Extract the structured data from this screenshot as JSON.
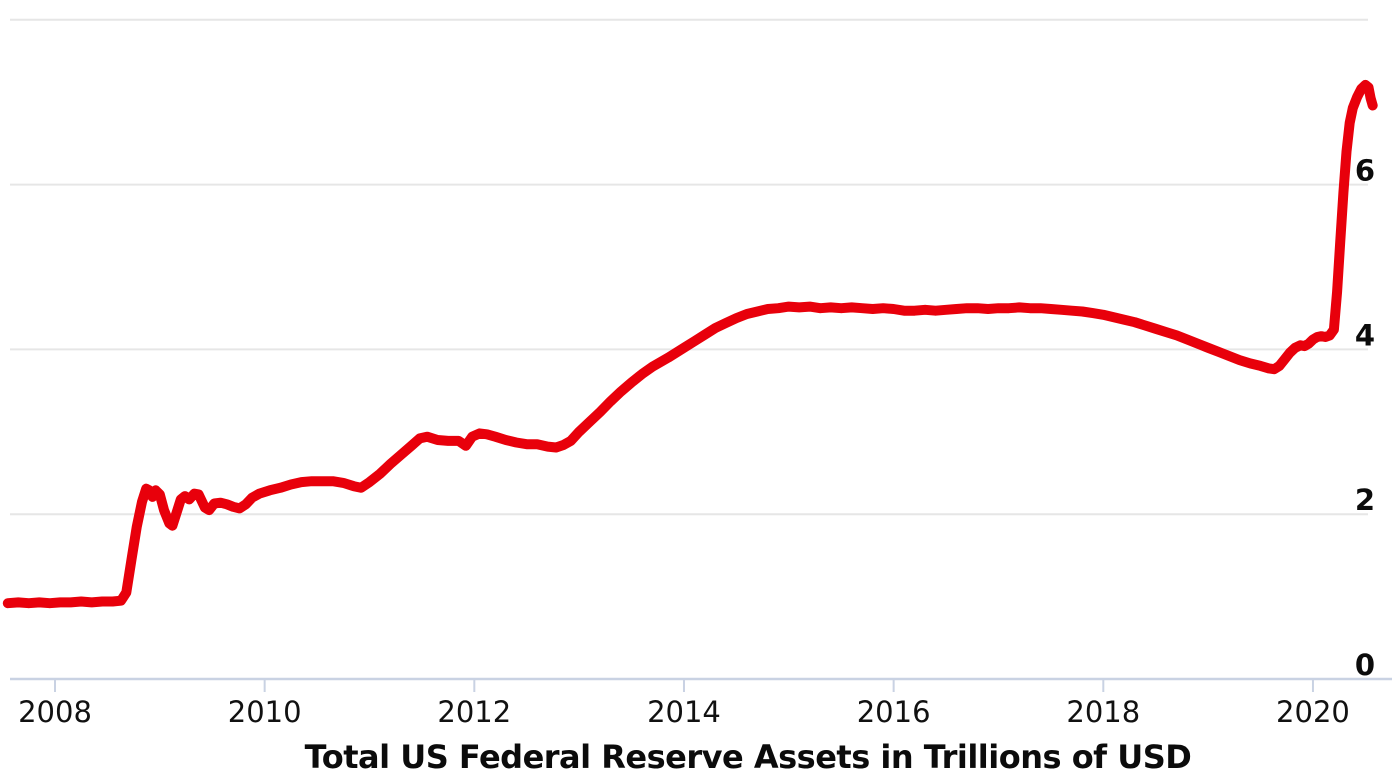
{
  "colors": {
    "line": "#e8000b",
    "gridline": "#e6e6e6",
    "axis": "#c9d2e3",
    "tick_text": "#111111",
    "background": "#ffffff"
  },
  "chart_data": {
    "type": "line",
    "title": "Total US Federal Reserve Assets in Trillions of USD",
    "xlabel": "",
    "ylabel": "",
    "legend": "none",
    "grid": "horizontal-only",
    "xlim": [
      2007.5,
      2020.75
    ],
    "ylim": [
      0,
      8
    ],
    "x_ticks": [
      {
        "value": 2008,
        "label": "2008"
      },
      {
        "value": 2010,
        "label": "2010"
      },
      {
        "value": 2012,
        "label": "2012"
      },
      {
        "value": 2014,
        "label": "2014"
      },
      {
        "value": 2016,
        "label": "2016"
      },
      {
        "value": 2018,
        "label": "2018"
      },
      {
        "value": 2020,
        "label": "2020"
      }
    ],
    "y_ticks": [
      {
        "value": 0,
        "label": "0"
      },
      {
        "value": 2,
        "label": "2"
      },
      {
        "value": 4,
        "label": "4"
      },
      {
        "value": 6,
        "label": "6"
      }
    ],
    "y_gridlines": [
      2,
      4,
      6,
      8
    ],
    "series": [
      {
        "name": "Total US Federal Reserve Assets (trillions USD)",
        "color": "#e8000b",
        "points": [
          [
            2007.55,
            0.92
          ],
          [
            2007.65,
            0.93
          ],
          [
            2007.75,
            0.92
          ],
          [
            2007.85,
            0.93
          ],
          [
            2007.95,
            0.92
          ],
          [
            2008.05,
            0.93
          ],
          [
            2008.15,
            0.93
          ],
          [
            2008.25,
            0.94
          ],
          [
            2008.35,
            0.93
          ],
          [
            2008.45,
            0.94
          ],
          [
            2008.55,
            0.94
          ],
          [
            2008.63,
            0.95
          ],
          [
            2008.68,
            1.05
          ],
          [
            2008.73,
            1.45
          ],
          [
            2008.78,
            1.85
          ],
          [
            2008.83,
            2.15
          ],
          [
            2008.87,
            2.31
          ],
          [
            2008.9,
            2.29
          ],
          [
            2008.93,
            2.21
          ],
          [
            2008.96,
            2.29
          ],
          [
            2009.0,
            2.24
          ],
          [
            2009.04,
            2.05
          ],
          [
            2009.09,
            1.89
          ],
          [
            2009.12,
            1.86
          ],
          [
            2009.16,
            2.02
          ],
          [
            2009.2,
            2.18
          ],
          [
            2009.24,
            2.22
          ],
          [
            2009.28,
            2.18
          ],
          [
            2009.33,
            2.25
          ],
          [
            2009.37,
            2.24
          ],
          [
            2009.43,
            2.08
          ],
          [
            2009.47,
            2.05
          ],
          [
            2009.52,
            2.13
          ],
          [
            2009.58,
            2.14
          ],
          [
            2009.64,
            2.12
          ],
          [
            2009.7,
            2.09
          ],
          [
            2009.76,
            2.07
          ],
          [
            2009.82,
            2.12
          ],
          [
            2009.88,
            2.2
          ],
          [
            2009.95,
            2.25
          ],
          [
            2010.05,
            2.29
          ],
          [
            2010.15,
            2.32
          ],
          [
            2010.25,
            2.36
          ],
          [
            2010.35,
            2.39
          ],
          [
            2010.45,
            2.4
          ],
          [
            2010.55,
            2.4
          ],
          [
            2010.65,
            2.4
          ],
          [
            2010.75,
            2.38
          ],
          [
            2010.85,
            2.34
          ],
          [
            2010.92,
            2.32
          ],
          [
            2011.0,
            2.39
          ],
          [
            2011.1,
            2.49
          ],
          [
            2011.2,
            2.61
          ],
          [
            2011.3,
            2.72
          ],
          [
            2011.4,
            2.83
          ],
          [
            2011.48,
            2.92
          ],
          [
            2011.55,
            2.94
          ],
          [
            2011.65,
            2.9
          ],
          [
            2011.75,
            2.89
          ],
          [
            2011.85,
            2.89
          ],
          [
            2011.92,
            2.83
          ],
          [
            2011.98,
            2.94
          ],
          [
            2012.05,
            2.98
          ],
          [
            2012.12,
            2.97
          ],
          [
            2012.2,
            2.94
          ],
          [
            2012.3,
            2.9
          ],
          [
            2012.4,
            2.87
          ],
          [
            2012.5,
            2.85
          ],
          [
            2012.6,
            2.85
          ],
          [
            2012.7,
            2.82
          ],
          [
            2012.78,
            2.81
          ],
          [
            2012.85,
            2.84
          ],
          [
            2012.92,
            2.89
          ],
          [
            2013.0,
            3.0
          ],
          [
            2013.1,
            3.12
          ],
          [
            2013.2,
            3.24
          ],
          [
            2013.3,
            3.37
          ],
          [
            2013.4,
            3.49
          ],
          [
            2013.5,
            3.6
          ],
          [
            2013.6,
            3.7
          ],
          [
            2013.7,
            3.79
          ],
          [
            2013.85,
            3.9
          ],
          [
            2014.0,
            4.02
          ],
          [
            2014.1,
            4.1
          ],
          [
            2014.2,
            4.18
          ],
          [
            2014.3,
            4.26
          ],
          [
            2014.4,
            4.32
          ],
          [
            2014.5,
            4.38
          ],
          [
            2014.6,
            4.43
          ],
          [
            2014.7,
            4.46
          ],
          [
            2014.8,
            4.49
          ],
          [
            2014.9,
            4.5
          ],
          [
            2015.0,
            4.52
          ],
          [
            2015.1,
            4.51
          ],
          [
            2015.2,
            4.52
          ],
          [
            2015.3,
            4.5
          ],
          [
            2015.4,
            4.51
          ],
          [
            2015.5,
            4.5
          ],
          [
            2015.6,
            4.51
          ],
          [
            2015.7,
            4.5
          ],
          [
            2015.8,
            4.49
          ],
          [
            2015.9,
            4.5
          ],
          [
            2016.0,
            4.49
          ],
          [
            2016.1,
            4.47
          ],
          [
            2016.2,
            4.47
          ],
          [
            2016.3,
            4.48
          ],
          [
            2016.4,
            4.47
          ],
          [
            2016.5,
            4.48
          ],
          [
            2016.6,
            4.49
          ],
          [
            2016.7,
            4.5
          ],
          [
            2016.8,
            4.5
          ],
          [
            2016.9,
            4.49
          ],
          [
            2017.0,
            4.5
          ],
          [
            2017.1,
            4.5
          ],
          [
            2017.2,
            4.51
          ],
          [
            2017.3,
            4.5
          ],
          [
            2017.4,
            4.5
          ],
          [
            2017.5,
            4.49
          ],
          [
            2017.6,
            4.48
          ],
          [
            2017.7,
            4.47
          ],
          [
            2017.8,
            4.46
          ],
          [
            2017.9,
            4.44
          ],
          [
            2018.0,
            4.42
          ],
          [
            2018.1,
            4.39
          ],
          [
            2018.2,
            4.36
          ],
          [
            2018.3,
            4.33
          ],
          [
            2018.4,
            4.29
          ],
          [
            2018.5,
            4.25
          ],
          [
            2018.6,
            4.21
          ],
          [
            2018.7,
            4.17
          ],
          [
            2018.8,
            4.12
          ],
          [
            2018.9,
            4.07
          ],
          [
            2019.0,
            4.02
          ],
          [
            2019.1,
            3.97
          ],
          [
            2019.2,
            3.92
          ],
          [
            2019.3,
            3.87
          ],
          [
            2019.4,
            3.83
          ],
          [
            2019.5,
            3.8
          ],
          [
            2019.58,
            3.77
          ],
          [
            2019.63,
            3.76
          ],
          [
            2019.68,
            3.8
          ],
          [
            2019.73,
            3.88
          ],
          [
            2019.78,
            3.96
          ],
          [
            2019.83,
            4.02
          ],
          [
            2019.88,
            4.05
          ],
          [
            2019.92,
            4.04
          ],
          [
            2019.96,
            4.07
          ],
          [
            2020.0,
            4.12
          ],
          [
            2020.04,
            4.15
          ],
          [
            2020.08,
            4.16
          ],
          [
            2020.12,
            4.15
          ],
          [
            2020.16,
            4.17
          ],
          [
            2020.2,
            4.24
          ],
          [
            2020.23,
            4.7
          ],
          [
            2020.26,
            5.3
          ],
          [
            2020.29,
            5.9
          ],
          [
            2020.32,
            6.4
          ],
          [
            2020.35,
            6.75
          ],
          [
            2020.38,
            6.93
          ],
          [
            2020.42,
            7.06
          ],
          [
            2020.46,
            7.16
          ],
          [
            2020.5,
            7.21
          ],
          [
            2020.53,
            7.18
          ],
          [
            2020.55,
            7.05
          ],
          [
            2020.57,
            6.96
          ]
        ]
      }
    ]
  }
}
